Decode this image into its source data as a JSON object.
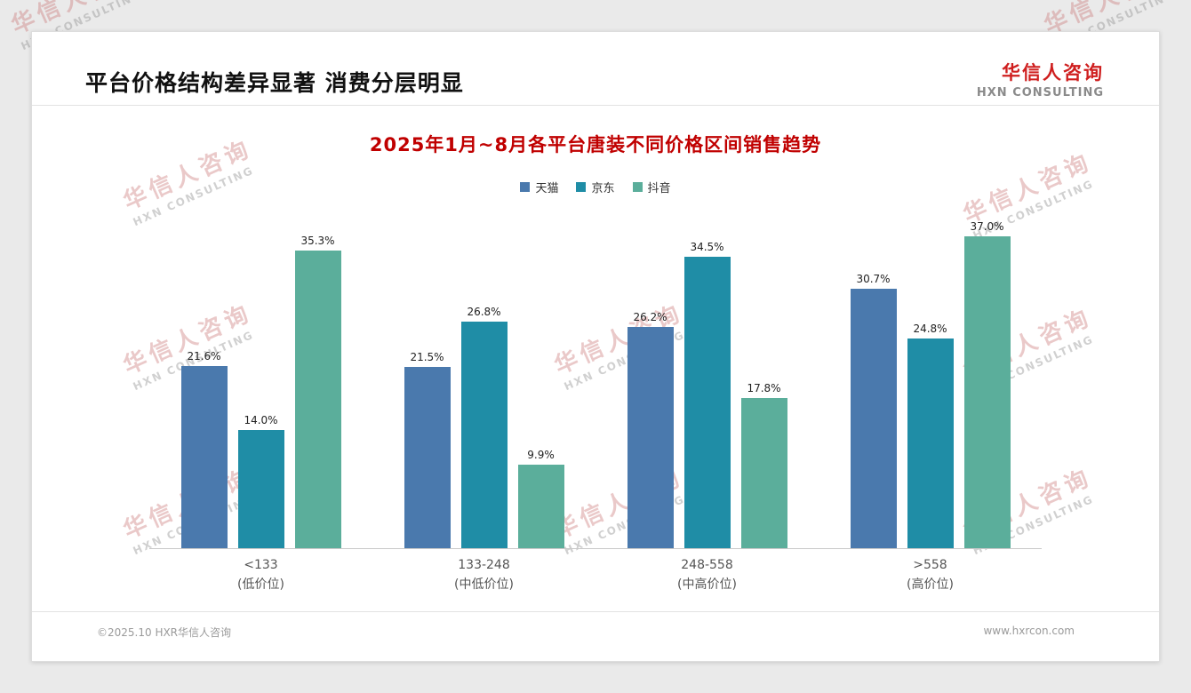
{
  "header": {
    "title": "平台价格结构差异显著 消费分层明显"
  },
  "logo": {
    "cn": "华信人咨询",
    "en": "HXN CONSULTING"
  },
  "watermark": {
    "cn": "华信人咨询",
    "en": "HXN CONSULTING"
  },
  "footer": {
    "left": "©2025.10 HXR华信人咨询",
    "right": "www.hxrcon.com"
  },
  "chart_data": {
    "type": "bar",
    "title": "2025年1月~8月各平台唐装不同价格区间销售趋势",
    "categories": [
      {
        "label": "<133",
        "sub": "(低价位)"
      },
      {
        "label": "133-248",
        "sub": "(中低价位)"
      },
      {
        "label": "248-558",
        "sub": "(中高价位)"
      },
      {
        "label": ">558",
        "sub": "(高价位)"
      }
    ],
    "series": [
      {
        "name": "天猫",
        "color": "#4a79ad",
        "values": [
          21.6,
          21.5,
          26.2,
          30.7
        ]
      },
      {
        "name": "京东",
        "color": "#1f8da6",
        "values": [
          14.0,
          26.8,
          34.5,
          24.8
        ]
      },
      {
        "name": "抖音",
        "color": "#5bae9b",
        "values": [
          35.3,
          9.9,
          17.8,
          37.0
        ]
      }
    ],
    "value_suffix": "%",
    "ylim": [
      0,
      40
    ],
    "legend_position": "top",
    "grid": false
  }
}
